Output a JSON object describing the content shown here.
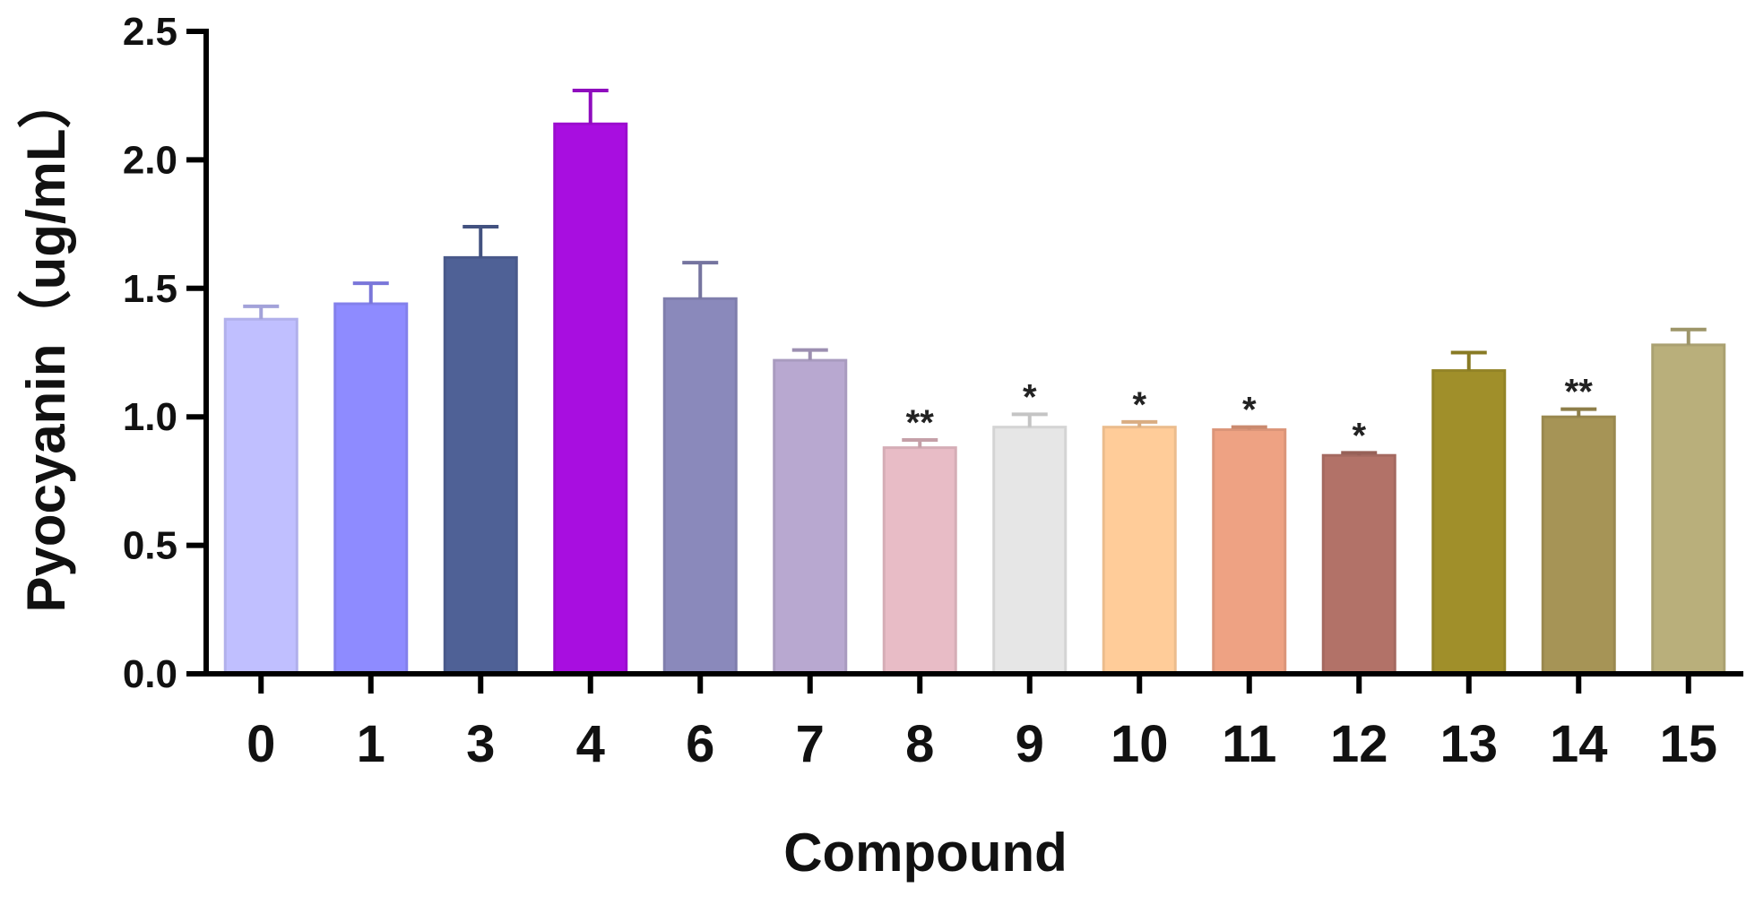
{
  "chart_data": {
    "type": "bar",
    "xlabel": "Compound",
    "ylabel": "Pyocyanin（ug/mL）",
    "ylim": [
      0,
      2.5
    ],
    "yticks": [
      "0.0",
      "0.5",
      "1.0",
      "1.5",
      "2.0",
      "2.5"
    ],
    "categories": [
      "0",
      "1",
      "3",
      "4",
      "6",
      "7",
      "8",
      "9",
      "10",
      "11",
      "12",
      "13",
      "14",
      "15"
    ],
    "values": [
      1.38,
      1.44,
      1.62,
      2.14,
      1.46,
      1.22,
      0.88,
      0.96,
      0.96,
      0.95,
      0.85,
      1.18,
      1.0,
      1.28
    ],
    "errors": [
      0.05,
      0.08,
      0.12,
      0.13,
      0.14,
      0.04,
      0.03,
      0.05,
      0.02,
      0.01,
      0.01,
      0.07,
      0.03,
      0.06
    ],
    "significance": [
      "",
      "",
      "",
      "",
      "",
      "",
      "**",
      "*",
      "*",
      "*",
      "*",
      "",
      "**",
      ""
    ],
    "colors": [
      "#c0bfff",
      "#8e8bff",
      "#4f6196",
      "#a80ee0",
      "#8a89bb",
      "#b8a8d0",
      "#e8bcc6",
      "#e6e6e6",
      "#ffcc99",
      "#eea283",
      "#b27268",
      "#a08f2a",
      "#a69456",
      "#b9af7b"
    ],
    "grid": false,
    "legend": "none"
  }
}
